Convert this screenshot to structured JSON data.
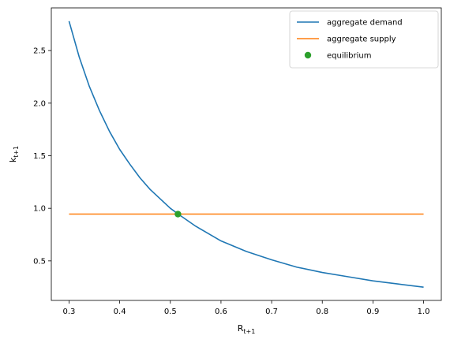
{
  "chart_data": {
    "type": "line",
    "title": "",
    "xlabel": "R",
    "xlabel_sub": "t+1",
    "ylabel": "k",
    "ylabel_sub": "t+1",
    "xlim": [
      0.265,
      1.035
    ],
    "ylim": [
      0.124,
      2.906
    ],
    "xticks": [
      "0.3",
      "0.4",
      "0.5",
      "0.6",
      "0.7",
      "0.8",
      "0.9",
      "1.0"
    ],
    "yticks": [
      "0.5",
      "1.0",
      "1.5",
      "2.0",
      "2.5"
    ],
    "grid": false,
    "legend_position": "top-right",
    "series": [
      {
        "name": "aggregate demand",
        "kind": "line",
        "color": "#1f77b4",
        "x": [
          0.3,
          0.32,
          0.34,
          0.36,
          0.38,
          0.4,
          0.42,
          0.44,
          0.46,
          0.48,
          0.5,
          0.52,
          0.55,
          0.6,
          0.65,
          0.7,
          0.75,
          0.8,
          0.85,
          0.9,
          0.95,
          1.0
        ],
        "y": [
          2.78,
          2.44,
          2.16,
          1.93,
          1.73,
          1.56,
          1.42,
          1.29,
          1.18,
          1.09,
          1.0,
          0.93,
          0.83,
          0.69,
          0.59,
          0.51,
          0.44,
          0.39,
          0.35,
          0.31,
          0.28,
          0.25
        ]
      },
      {
        "name": "aggregate supply",
        "kind": "line",
        "color": "#ff7f0e",
        "x": [
          0.3,
          1.0
        ],
        "y": [
          0.945,
          0.945
        ]
      },
      {
        "name": "equilibrium",
        "kind": "point",
        "color": "#2ca02c",
        "x": [
          0.515
        ],
        "y": [
          0.945
        ]
      }
    ]
  }
}
